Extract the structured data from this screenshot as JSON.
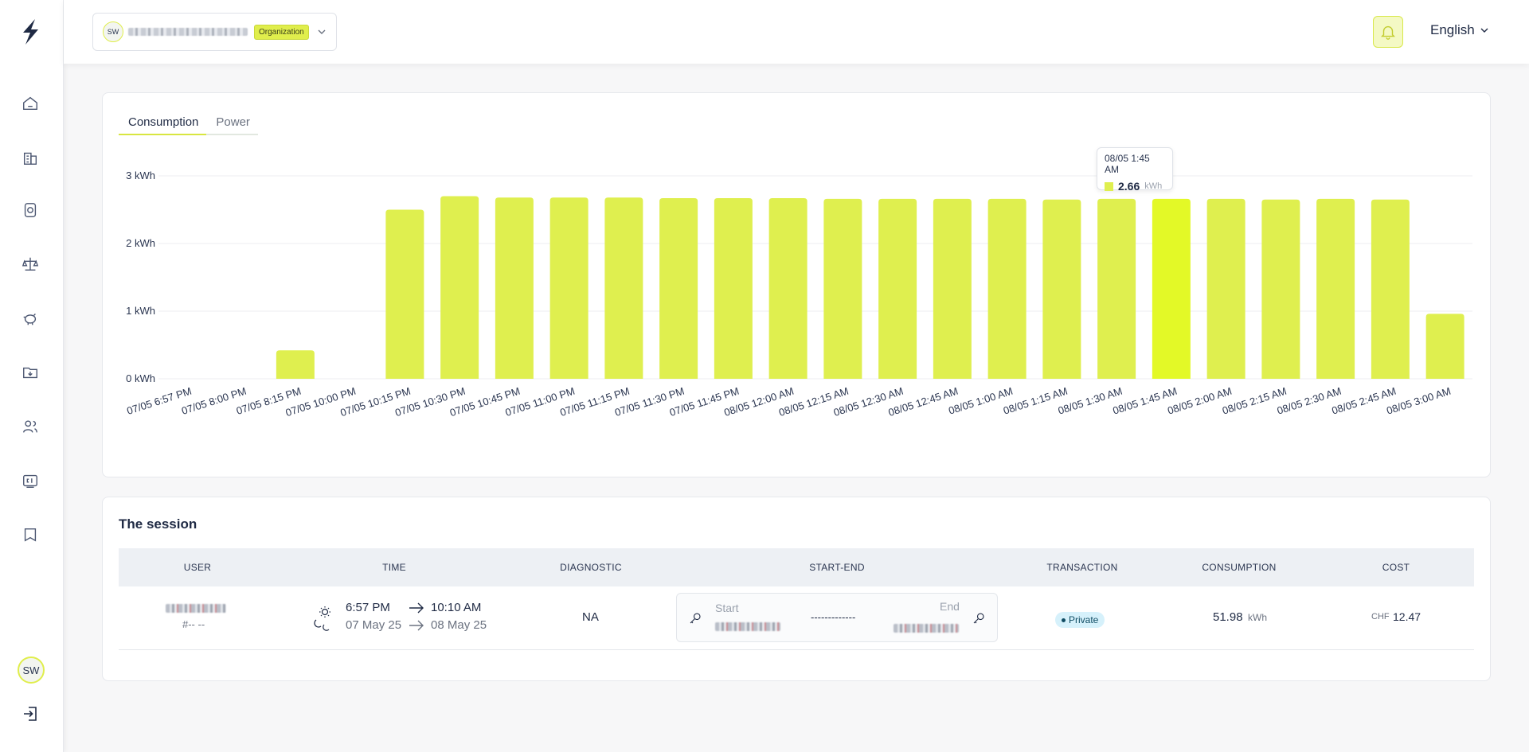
{
  "header": {
    "org_avatar": "SW",
    "org_badge": "Organization",
    "language": "English"
  },
  "sidebar": {
    "avatar": "SW",
    "items": [
      {
        "icon": "home-icon"
      },
      {
        "icon": "buildings-icon"
      },
      {
        "icon": "charger-icon"
      },
      {
        "icon": "balance-icon"
      },
      {
        "icon": "piggy-bank-icon"
      },
      {
        "icon": "folder-download-icon"
      },
      {
        "icon": "users-icon"
      },
      {
        "icon": "cards-icon"
      },
      {
        "icon": "book-icon"
      }
    ]
  },
  "chart": {
    "tabs": [
      "Consumption",
      "Power"
    ],
    "active_tab": "Consumption",
    "tooltip": {
      "date": "08/05 1:45 AM",
      "value": "2.66",
      "unit": "kWh"
    }
  },
  "chart_data": {
    "type": "bar",
    "categories": [
      "07/05 6:57 PM",
      "07/05 8:00 PM",
      "07/05 8:15 PM",
      "07/05 10:00 PM",
      "07/05 10:15 PM",
      "07/05 10:30 PM",
      "07/05 10:45 PM",
      "07/05 11:00 PM",
      "07/05 11:15 PM",
      "07/05 11:30 PM",
      "07/05 11:45 PM",
      "08/05 12:00 AM",
      "08/05 12:15 AM",
      "08/05 12:30 AM",
      "08/05 12:45 AM",
      "08/05 1:00 AM",
      "08/05 1:15 AM",
      "08/05 1:30 AM",
      "08/05 1:45 AM",
      "08/05 2:00 AM",
      "08/05 2:15 AM",
      "08/05 2:30 AM",
      "08/05 2:45 AM",
      "08/05 3:00 AM"
    ],
    "values": [
      0,
      0,
      0.42,
      0,
      2.5,
      2.7,
      2.68,
      2.68,
      2.68,
      2.67,
      2.67,
      2.67,
      2.66,
      2.66,
      2.66,
      2.66,
      2.65,
      2.66,
      2.66,
      2.66,
      2.65,
      2.66,
      2.65,
      0.96
    ],
    "unit": "kWh",
    "ytick_labels": [
      "0 kWh",
      "1 kWh",
      "2 kWh",
      "3 kWh"
    ],
    "ylim": [
      0,
      3
    ],
    "highlighted_index": 18,
    "bar_color": "#dfef4f",
    "highlight_color": "#e3f927",
    "grid": true
  },
  "session": {
    "title": "The session",
    "columns": [
      "USER",
      "TIME",
      "DIAGNOSTIC",
      "START-END",
      "TRANSACTION",
      "CONSUMPTION",
      "COST"
    ],
    "row": {
      "user_id": "#-- --",
      "start_time": "6:57 PM",
      "end_time": "10:10 AM",
      "start_date": "07 May 25",
      "end_date": "08 May 25",
      "diagnostic": "NA",
      "start_label": "Start",
      "end_label": "End",
      "dashes": "-------------",
      "transaction": "Private",
      "consumption_value": "51.98",
      "consumption_unit": "kWh",
      "cost_currency": "CHF",
      "cost_value": "12.47"
    }
  }
}
